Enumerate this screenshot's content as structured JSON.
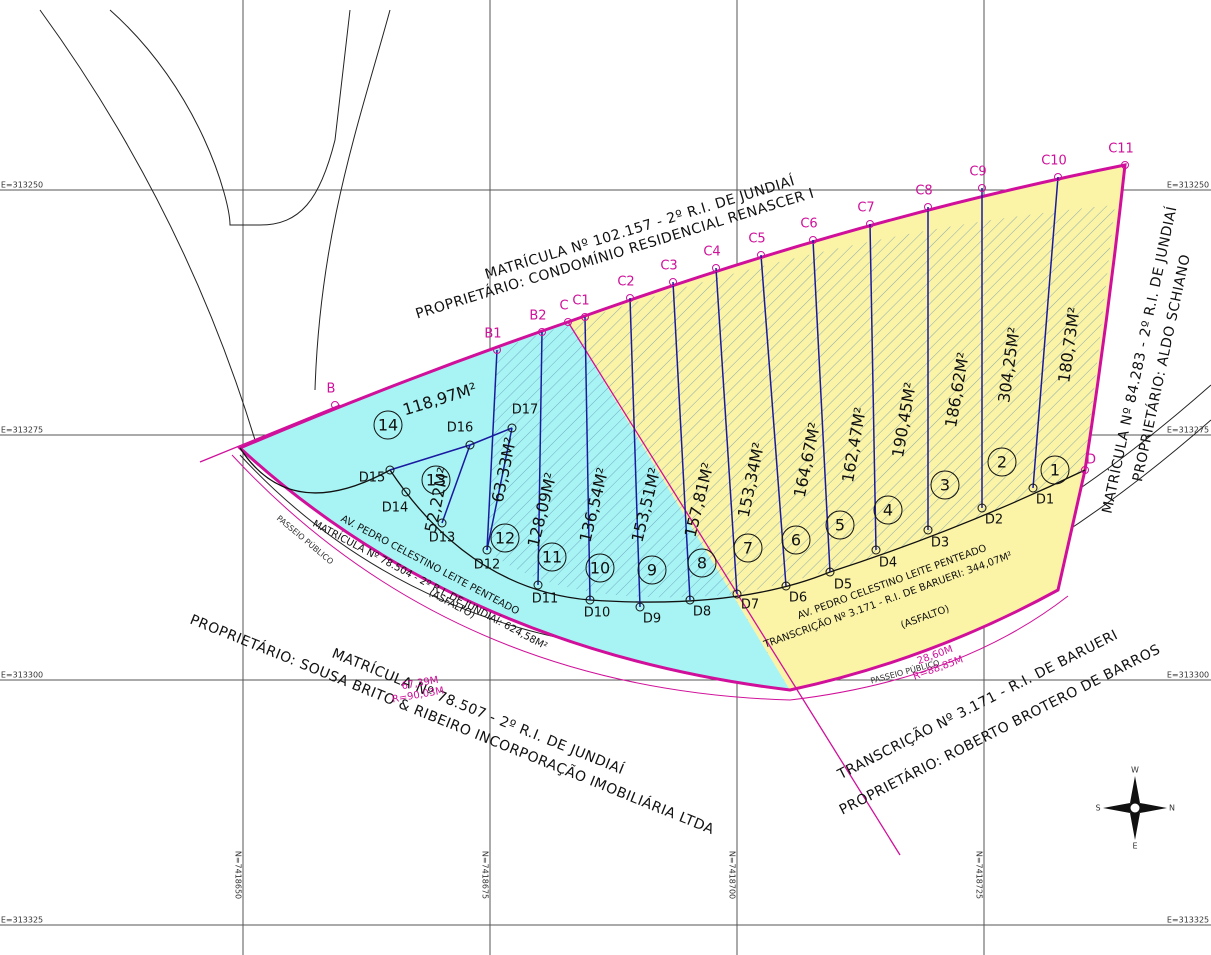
{
  "grid": {
    "e_labels": [
      "E=313250",
      "E=313275",
      "E=313300",
      "E=313325"
    ],
    "n_labels": [
      "N=7418650",
      "N=7418675",
      "N=7418700",
      "N=7418725"
    ]
  },
  "boundary_points": [
    "B",
    "B1",
    "B2",
    "C",
    "C1",
    "C2",
    "C3",
    "C4",
    "C5",
    "C6",
    "C7",
    "C8",
    "C9",
    "C10",
    "C11",
    "D"
  ],
  "lot_points": [
    "D1",
    "D2",
    "D3",
    "D4",
    "D5",
    "D6",
    "D7",
    "D8",
    "D9",
    "D10",
    "D11",
    "D12",
    "D13",
    "D14",
    "D15",
    "D16",
    "D17"
  ],
  "lots": [
    {
      "number": "1",
      "area": "180,73M²"
    },
    {
      "number": "2",
      "area": "304,25M²"
    },
    {
      "number": "3",
      "area": "186,62M²"
    },
    {
      "number": "4",
      "area": "190,45M²"
    },
    {
      "number": "5",
      "area": "162,47M²"
    },
    {
      "number": "6",
      "area": "164,67M²"
    },
    {
      "number": "7",
      "area": "153,34M²"
    },
    {
      "number": "8",
      "area": "157,81M²"
    },
    {
      "number": "9",
      "area": "153,51M²"
    },
    {
      "number": "10",
      "area": "136,54M²"
    },
    {
      "number": "11",
      "area": "128,09M²"
    },
    {
      "number": "12",
      "area": "63,33M²"
    },
    {
      "number": "13",
      "area": "52,22M²"
    },
    {
      "number": "14",
      "area": "118,97M²"
    }
  ],
  "owners": [
    {
      "registry": "MATRÍCULA Nº 102.157 - 2º R.I. DE JUNDIAÍ",
      "owner": "PROPRIETÁRIO: CONDOMÍNIO RESIDENCIAL RENASCER I"
    },
    {
      "registry": "MATRÍCULA Nº 84.283 - 2º R.I. DE JUNDIAÍ",
      "owner": "PROPRIETÁRIO: ALDO SCHIANO"
    },
    {
      "registry": "MATRÍCULA Nº 78.507 - 2º R.I. DE JUNDIAÍ",
      "owner": "PROPRIETÁRIO: SOUSA BRITO & RIBEIRO INCORPORAÇÃO IMOBILIÁRIA LTDA"
    },
    {
      "registry": "TRANSCRIÇÃO Nº 3.171 - R.I. DE BARUERI",
      "owner": "PROPRIETÁRIO: ROBERTO BROTERO DE BARROS"
    }
  ],
  "streets": [
    {
      "name": "AV. PEDRO CELESTINO LEITE PENTEADO",
      "registry": "MATRÍCULA Nº 78.504 - 2º R.I. DE JUNDIAÍ: 624,58M²",
      "surface": "(ASFALTO)"
    },
    {
      "name": "AV. PEDRO CELESTINO LEITE PENTEADO",
      "registry": "TRANSCRIÇÃO Nº 3.171 - R.I. DE BARUERI: 344,07M²",
      "surface": "(ASFALTO)"
    }
  ],
  "arcs": [
    {
      "length": "67,39M",
      "radius": "R=90,03M"
    },
    {
      "length": "28,60M",
      "radius": "R=88,85M"
    }
  ],
  "sidewalk": "PASSEIO PÚBLICO",
  "compass": [
    "W",
    "N",
    "E",
    "S"
  ]
}
